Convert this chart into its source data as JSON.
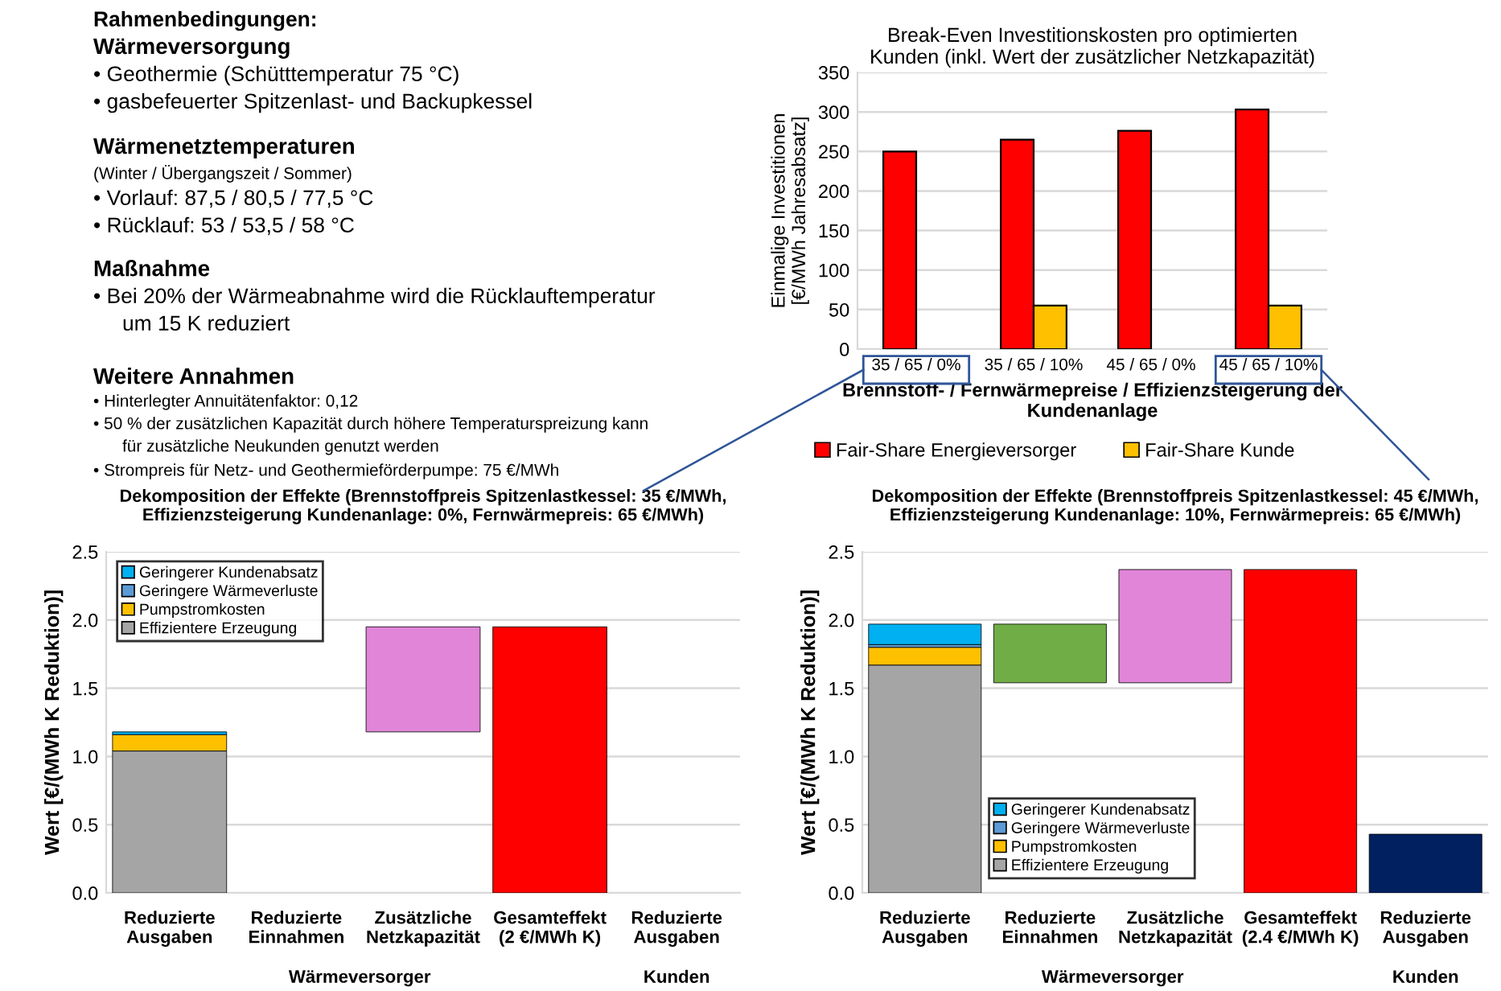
{
  "chart_data": [
    {
      "type": "other",
      "title": "Rahmenbedingungen:",
      "annotations": [
        "Wärmeversorgung",
        "• Geothermie (Schütttemperatur 75 °C)",
        "• gasbefeuerter Spitzenlast- und Backupkessel",
        "Wärmenetztemperaturen",
        "(Winter / Übergangszeit / Sommer)",
        "• Vorlauf: 87,5 / 80,5 / 77,5 °C",
        "• Rücklauf: 53 / 53,5 / 58 °C",
        "Maßnahme",
        "• Bei 20% der Wärmeabnahme wird die Rücklauftemperatur\num 15 K reduziert",
        "Weitere Annahmen",
        "• Hinterlegter Annuitätenfaktor: 0,12",
        "• 50 % der zusätzlichen Kapazität durch höhere Temperaturspreizung kann\nfür zusätzliche Neukunden genutzt werden",
        "• Strompreis für Netz- und Geothermieförderpumpe: 75 €/MWh"
      ]
    },
    {
      "type": "bar",
      "title": "Break-Even Investitionskosten pro optimierten\nKunden (inkl. Wert der zusätzlicher Netzkapazität)",
      "xlabel": "Brennstoff- / Fernwärmepreise / Effizienzsteigerung der\nKundenanlage",
      "ylabel": "Einmalige Investitionen\n[€/MWh Jahresabsatz]",
      "categories": [
        "35 / 65 / 0%",
        "35 / 65 / 10%",
        "45 / 65 / 0%",
        "45 / 65 / 10%"
      ],
      "series": [
        {
          "name": "Fair-Share Energieversorger",
          "color": "#ff0000",
          "values": [
            250,
            265,
            276,
            303
          ]
        },
        {
          "name": "Fair-Share Kunde",
          "color": "#ffc000",
          "values": [
            null,
            55,
            null,
            55
          ]
        }
      ],
      "ylim": [
        0,
        350
      ],
      "yticks": [
        0,
        50,
        100,
        150,
        200,
        250,
        300,
        350
      ],
      "grid": "y",
      "legend": "bottom"
    },
    {
      "type": "bar",
      "stacked": true,
      "title": "Dekomposition der Effekte (Brennstoffpreis Spitzenlastkessel: 35 €/MWh,\nEffizienzsteigerung Kundenanlage: 0%, Fernwärmepreis: 65 €/MWh)",
      "ylabel": "Wert [€/(MWh K Reduktion)]",
      "categories": [
        "Reduzierte Ausgaben",
        "Reduzierte Einnahmen",
        "Zusätzliche Netzkapazität",
        "Gesamteffekt (2 €/MWh K)",
        "Reduzierte Ausgaben"
      ],
      "series": [
        {
          "name": "Effizientere Erzeugung",
          "color": "#a5a5a5",
          "values": [
            1.04,
            null,
            null,
            null,
            null
          ]
        },
        {
          "name": "Pumpstromkosten",
          "color": "#ffc000",
          "values": [
            0.12,
            null,
            null,
            null,
            null
          ]
        },
        {
          "name": "Geringere Wärmeverluste",
          "color": "#5b9bd5",
          "values": [
            null,
            null,
            null,
            null,
            null
          ]
        },
        {
          "name": "Geringerer Kundenabsatz",
          "color": "#00b0f0",
          "values": [
            0.02,
            null,
            null,
            null,
            null
          ]
        },
        {
          "color": "#e085d8",
          "values": [
            null,
            null,
            0.77,
            null,
            null
          ],
          "base": [
            null,
            null,
            1.18,
            null,
            null
          ]
        },
        {
          "color": "#ff0000",
          "values": [
            null,
            null,
            null,
            1.95,
            null
          ]
        }
      ],
      "annotations": [
        "Wärmeversorger",
        "Kunden"
      ],
      "ylim": [
        0,
        2.5
      ],
      "yticks": [
        {
          "value": 0,
          "label": "0.0"
        },
        0.5,
        {
          "value": 1,
          "label": "1.0"
        },
        1.5,
        {
          "value": 2,
          "label": "2.0"
        },
        2.5
      ],
      "grid": "y",
      "legend": "top left"
    },
    {
      "type": "bar",
      "stacked": true,
      "title": "Dekomposition der Effekte (Brennstoffpreis Spitzenlastkessel: 45 €/MWh,\nEffizienzsteigerung Kundenanlage: 10%, Fernwärmepreis: 65 €/MWh)",
      "ylabel": "Wert [€/(MWh K Reduktion)]",
      "categories": [
        "Reduzierte Ausgaben",
        "Reduzierte Einnahmen",
        "Zusätzliche Netzkapazität",
        "Gesamteffekt (2.4 €/MWh K)",
        "Reduzierte Ausgaben"
      ],
      "series": [
        {
          "name": "Effizientere Erzeugung",
          "color": "#a5a5a5",
          "values": [
            1.67,
            null,
            null,
            null,
            null
          ]
        },
        {
          "name": "Pumpstromkosten",
          "color": "#ffc000",
          "values": [
            0.13,
            null,
            null,
            null,
            null
          ]
        },
        {
          "name": "Geringere Wärmeverluste",
          "color": "#5b9bd5",
          "values": [
            0.02,
            null,
            null,
            null,
            null
          ]
        },
        {
          "name": "Geringerer Kundenabsatz",
          "color": "#00b0f0",
          "values": [
            0.15,
            null,
            null,
            null,
            null
          ]
        },
        {
          "color": "#70ad47",
          "values": [
            null,
            0.43,
            null,
            null,
            null
          ],
          "base": [
            null,
            1.54,
            null,
            null,
            null
          ]
        },
        {
          "color": "#e085d8",
          "values": [
            null,
            null,
            0.83,
            null,
            null
          ],
          "base": [
            null,
            null,
            1.54,
            null,
            null
          ]
        },
        {
          "color": "#ff0000",
          "values": [
            null,
            null,
            null,
            2.37,
            null
          ]
        },
        {
          "color": "#002060",
          "values": [
            null,
            null,
            null,
            null,
            0.43
          ]
        }
      ],
      "annotations": [
        "Wärmeversorger",
        "Kunden"
      ],
      "ylim": [
        0,
        2.5
      ],
      "yticks": [
        {
          "value": 0,
          "label": "0.0"
        },
        0.5,
        {
          "value": 1,
          "label": "1.0"
        },
        1.5,
        {
          "value": 2,
          "label": "2.0"
        },
        2.5
      ],
      "grid": "y",
      "legend": "bottom left"
    }
  ]
}
